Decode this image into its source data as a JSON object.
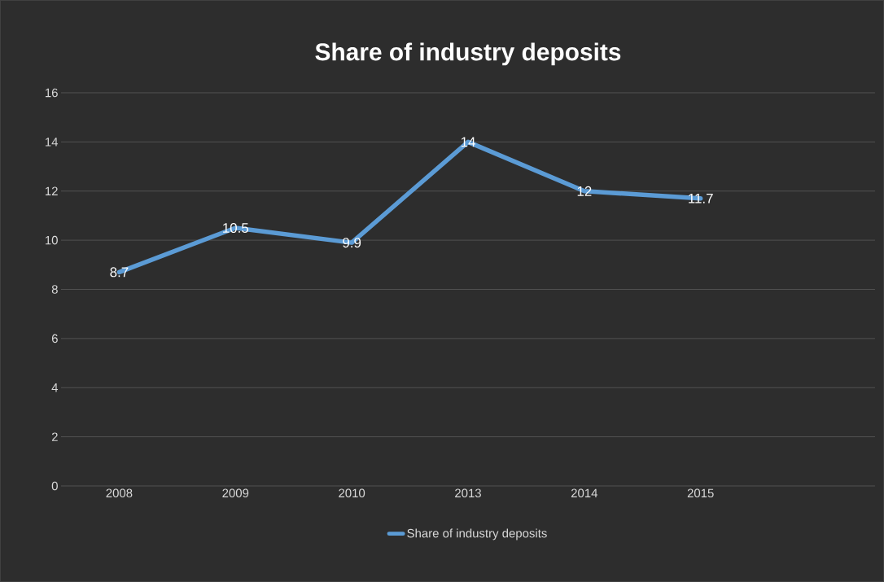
{
  "chart_data": {
    "type": "line",
    "title": "Share of industry deposits",
    "categories": [
      "2008",
      "2009",
      "2010",
      "2013",
      "2014",
      "2015",
      null
    ],
    "series": [
      {
        "name": "Share of industry deposits",
        "color": "#5b9bd5",
        "values": [
          8.7,
          10.5,
          9.9,
          14,
          12,
          11.7,
          null
        ]
      }
    ],
    "ylim": [
      0,
      16
    ],
    "yticks": [
      0,
      2,
      4,
      6,
      8,
      10,
      12,
      14,
      16
    ],
    "grid": "y",
    "legend": "bottom",
    "data_labels": true,
    "marker": "none",
    "line_style": "solid"
  }
}
